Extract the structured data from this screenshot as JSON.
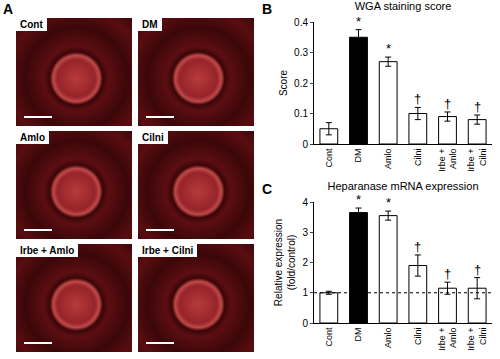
{
  "image_panel": {
    "panel": "A",
    "images": [
      "Cont",
      "DM",
      "Amlo",
      "Cilni",
      "Irbe + Amlo",
      "Irbe + Cilni"
    ]
  },
  "chart_data": [
    {
      "panel": "B",
      "type": "bar",
      "title": "WGA staining score",
      "y_label": "Score",
      "categories": [
        "Cont",
        "DM",
        "Amlo",
        "Cilni",
        "Irbe + Amlo",
        "Irbe + Cilni"
      ],
      "values": [
        0.05,
        0.35,
        0.27,
        0.1,
        0.09,
        0.08
      ],
      "errors": [
        0.02,
        0.025,
        0.015,
        0.02,
        0.015,
        0.015
      ],
      "significance": [
        null,
        "*",
        "*",
        "†",
        "†",
        "†"
      ],
      "colors": [
        "#ffffff",
        "#000000",
        "#ffffff",
        "#ffffff",
        "#ffffff",
        "#ffffff"
      ],
      "ylim": [
        0,
        0.4
      ],
      "yticks": [
        0,
        0.1,
        0.2,
        0.3,
        0.4
      ],
      "grid": false
    },
    {
      "panel": "C",
      "type": "bar",
      "title": "Heparanase mRNA expression",
      "y_label": "Relative expression (fold/control)",
      "categories": [
        "Cont",
        "DM",
        "Amlo",
        "Cilni",
        "Irbe + Amlo",
        "Irbe + Cilni"
      ],
      "values": [
        1.0,
        3.65,
        3.55,
        1.9,
        1.15,
        1.15
      ],
      "errors": [
        0.05,
        0.15,
        0.15,
        0.35,
        0.2,
        0.35
      ],
      "significance": [
        null,
        "*",
        "*",
        "†",
        "†",
        "†"
      ],
      "colors": [
        "#ffffff",
        "#000000",
        "#ffffff",
        "#ffffff",
        "#ffffff",
        "#ffffff"
      ],
      "reference_line": 1,
      "ylim": [
        0,
        4
      ],
      "yticks": [
        0,
        1,
        2,
        3,
        4
      ],
      "grid": false
    }
  ]
}
